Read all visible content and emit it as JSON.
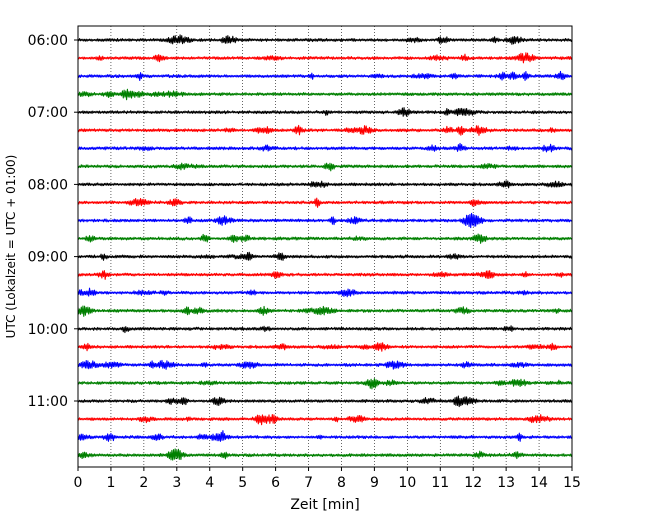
{
  "chart_data": {
    "type": "line",
    "title": "",
    "xlabel": "Zeit  [min]",
    "ylabel": "UTC (Lokalzeit = UTC + 01:00)",
    "xlim": [
      0,
      15
    ],
    "xticks": [
      "0",
      "1",
      "2",
      "3",
      "4",
      "5",
      "6",
      "7",
      "8",
      "9",
      "10",
      "11",
      "12",
      "13",
      "14",
      "15"
    ],
    "yticks": [
      "06:00",
      "07:00",
      "08:00",
      "09:00",
      "10:00",
      "11:00"
    ],
    "grid": "vertical dotted",
    "trace_colors": [
      "#000000",
      "#ff0000",
      "#0000ff",
      "#008000"
    ],
    "traces": [
      {
        "start": "06:00",
        "color": "#000000"
      },
      {
        "start": "06:15",
        "color": "#ff0000"
      },
      {
        "start": "06:30",
        "color": "#0000ff"
      },
      {
        "start": "06:45",
        "color": "#008000"
      },
      {
        "start": "07:00",
        "color": "#000000"
      },
      {
        "start": "07:15",
        "color": "#ff0000"
      },
      {
        "start": "07:30",
        "color": "#0000ff"
      },
      {
        "start": "07:45",
        "color": "#008000"
      },
      {
        "start": "08:00",
        "color": "#000000"
      },
      {
        "start": "08:15",
        "color": "#ff0000"
      },
      {
        "start": "08:30",
        "color": "#0000ff"
      },
      {
        "start": "08:45",
        "color": "#008000"
      },
      {
        "start": "09:00",
        "color": "#000000"
      },
      {
        "start": "09:15",
        "color": "#ff0000"
      },
      {
        "start": "09:30",
        "color": "#0000ff"
      },
      {
        "start": "09:45",
        "color": "#008000"
      },
      {
        "start": "10:00",
        "color": "#000000"
      },
      {
        "start": "10:15",
        "color": "#ff0000"
      },
      {
        "start": "10:30",
        "color": "#0000ff"
      },
      {
        "start": "10:45",
        "color": "#008000"
      },
      {
        "start": "11:00",
        "color": "#000000"
      },
      {
        "start": "11:15",
        "color": "#ff0000"
      },
      {
        "start": "11:30",
        "color": "#0000ff"
      },
      {
        "start": "11:45",
        "color": "#008000"
      }
    ]
  }
}
